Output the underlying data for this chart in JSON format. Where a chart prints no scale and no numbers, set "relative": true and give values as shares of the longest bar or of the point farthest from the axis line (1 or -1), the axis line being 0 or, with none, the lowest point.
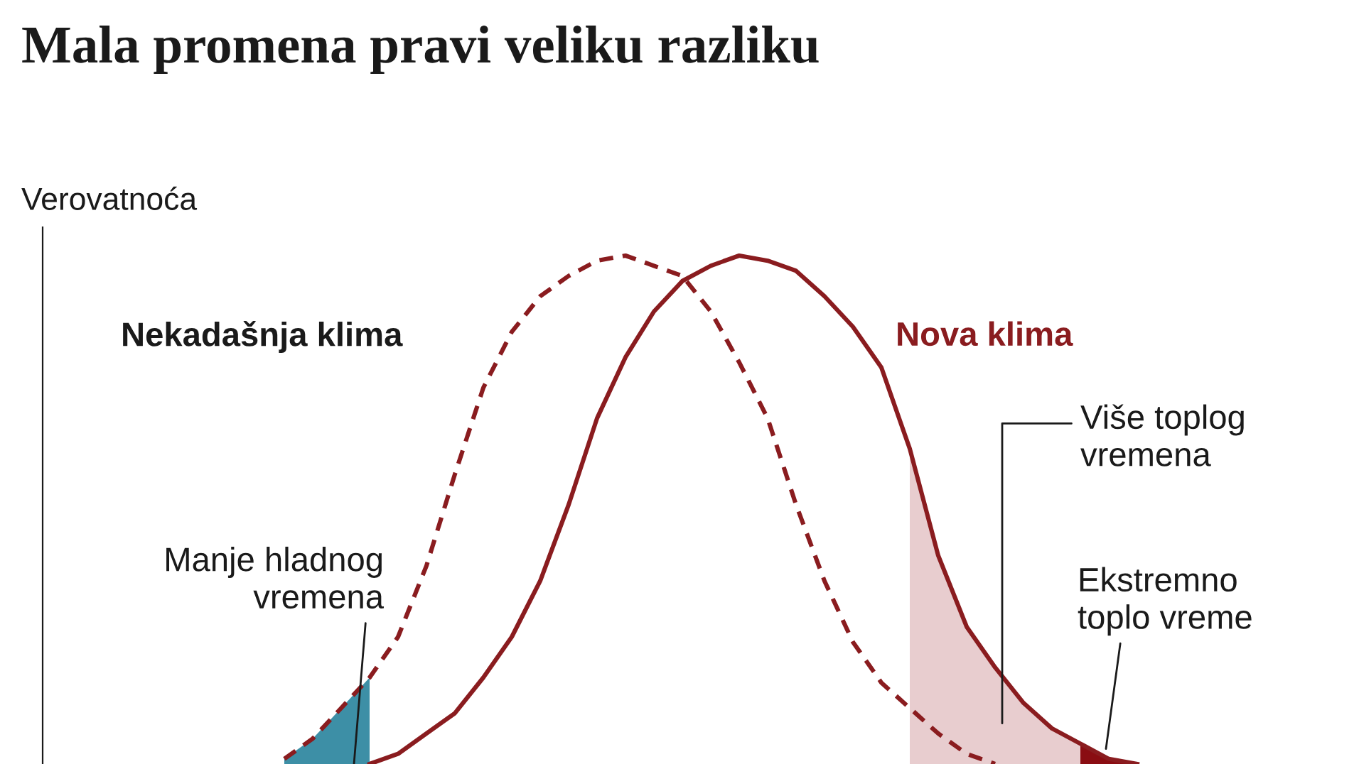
{
  "chart_data": {
    "type": "line",
    "title": "Mala promena pravi veliku razliku",
    "ylabel": "Verovatnoća",
    "relative": true,
    "categories": [
      null,
      null,
      null,
      null,
      null,
      null,
      null,
      null,
      null,
      null,
      null,
      null,
      null,
      null,
      null,
      null,
      null,
      null,
      null,
      null,
      null,
      null,
      null,
      null,
      null,
      null,
      null,
      null,
      null,
      null,
      null,
      null
    ],
    "series": [
      {
        "name": "Nekadašnja klima",
        "line_style": "dashed",
        "color": "#8a1c1f",
        "values": [
          null,
          0.01,
          0.05,
          0.11,
          0.17,
          0.25,
          0.39,
          0.57,
          0.74,
          0.85,
          0.92,
          0.96,
          0.99,
          1.0,
          0.98,
          0.96,
          0.89,
          0.79,
          0.68,
          0.51,
          0.36,
          0.24,
          0.16,
          0.11,
          0.06,
          0.02,
          0,
          null,
          null,
          null,
          null,
          null
        ]
      },
      {
        "name": "Nova klima",
        "line_style": "solid",
        "color": "#8a1c1f",
        "values": [
          null,
          null,
          null,
          null,
          0,
          0.02,
          0.06,
          0.1,
          0.17,
          0.25,
          0.36,
          0.51,
          0.68,
          0.8,
          0.89,
          0.95,
          0.98,
          1.0,
          0.99,
          0.97,
          0.92,
          0.86,
          0.78,
          0.62,
          0.41,
          0.27,
          0.19,
          0.12,
          0.07,
          0.04,
          0.01,
          0
        ]
      },
      {
        "type": "area",
        "color": "#3d8fa6",
        "values": [
          null,
          0.01,
          0.05,
          0.11,
          0.17,
          null,
          null,
          null,
          null,
          null,
          null,
          null,
          null,
          null,
          null,
          null,
          null,
          null,
          null,
          null,
          null,
          null,
          null,
          null,
          null,
          null,
          null,
          null,
          null,
          null,
          null,
          null
        ]
      },
      {
        "type": "area",
        "color": "#e8cdcf",
        "values": [
          null,
          null,
          null,
          null,
          null,
          null,
          null,
          null,
          null,
          null,
          null,
          null,
          null,
          null,
          null,
          null,
          null,
          null,
          null,
          null,
          null,
          null,
          null,
          0.62,
          0.41,
          0.27,
          0.19,
          0.12,
          0.07,
          0.04,
          null,
          null
        ]
      },
      {
        "type": "area",
        "color": "#8a0d12",
        "values": [
          null,
          null,
          null,
          null,
          null,
          null,
          null,
          null,
          null,
          null,
          null,
          null,
          null,
          null,
          null,
          null,
          null,
          null,
          null,
          null,
          null,
          null,
          null,
          null,
          null,
          null,
          null,
          null,
          null,
          0.04,
          0.01,
          0
        ]
      }
    ],
    "annotations": [
      "Manje hladnog\nvremena",
      "Više toplog\nvremena",
      "Ekstremno\ntoplo vreme"
    ]
  }
}
